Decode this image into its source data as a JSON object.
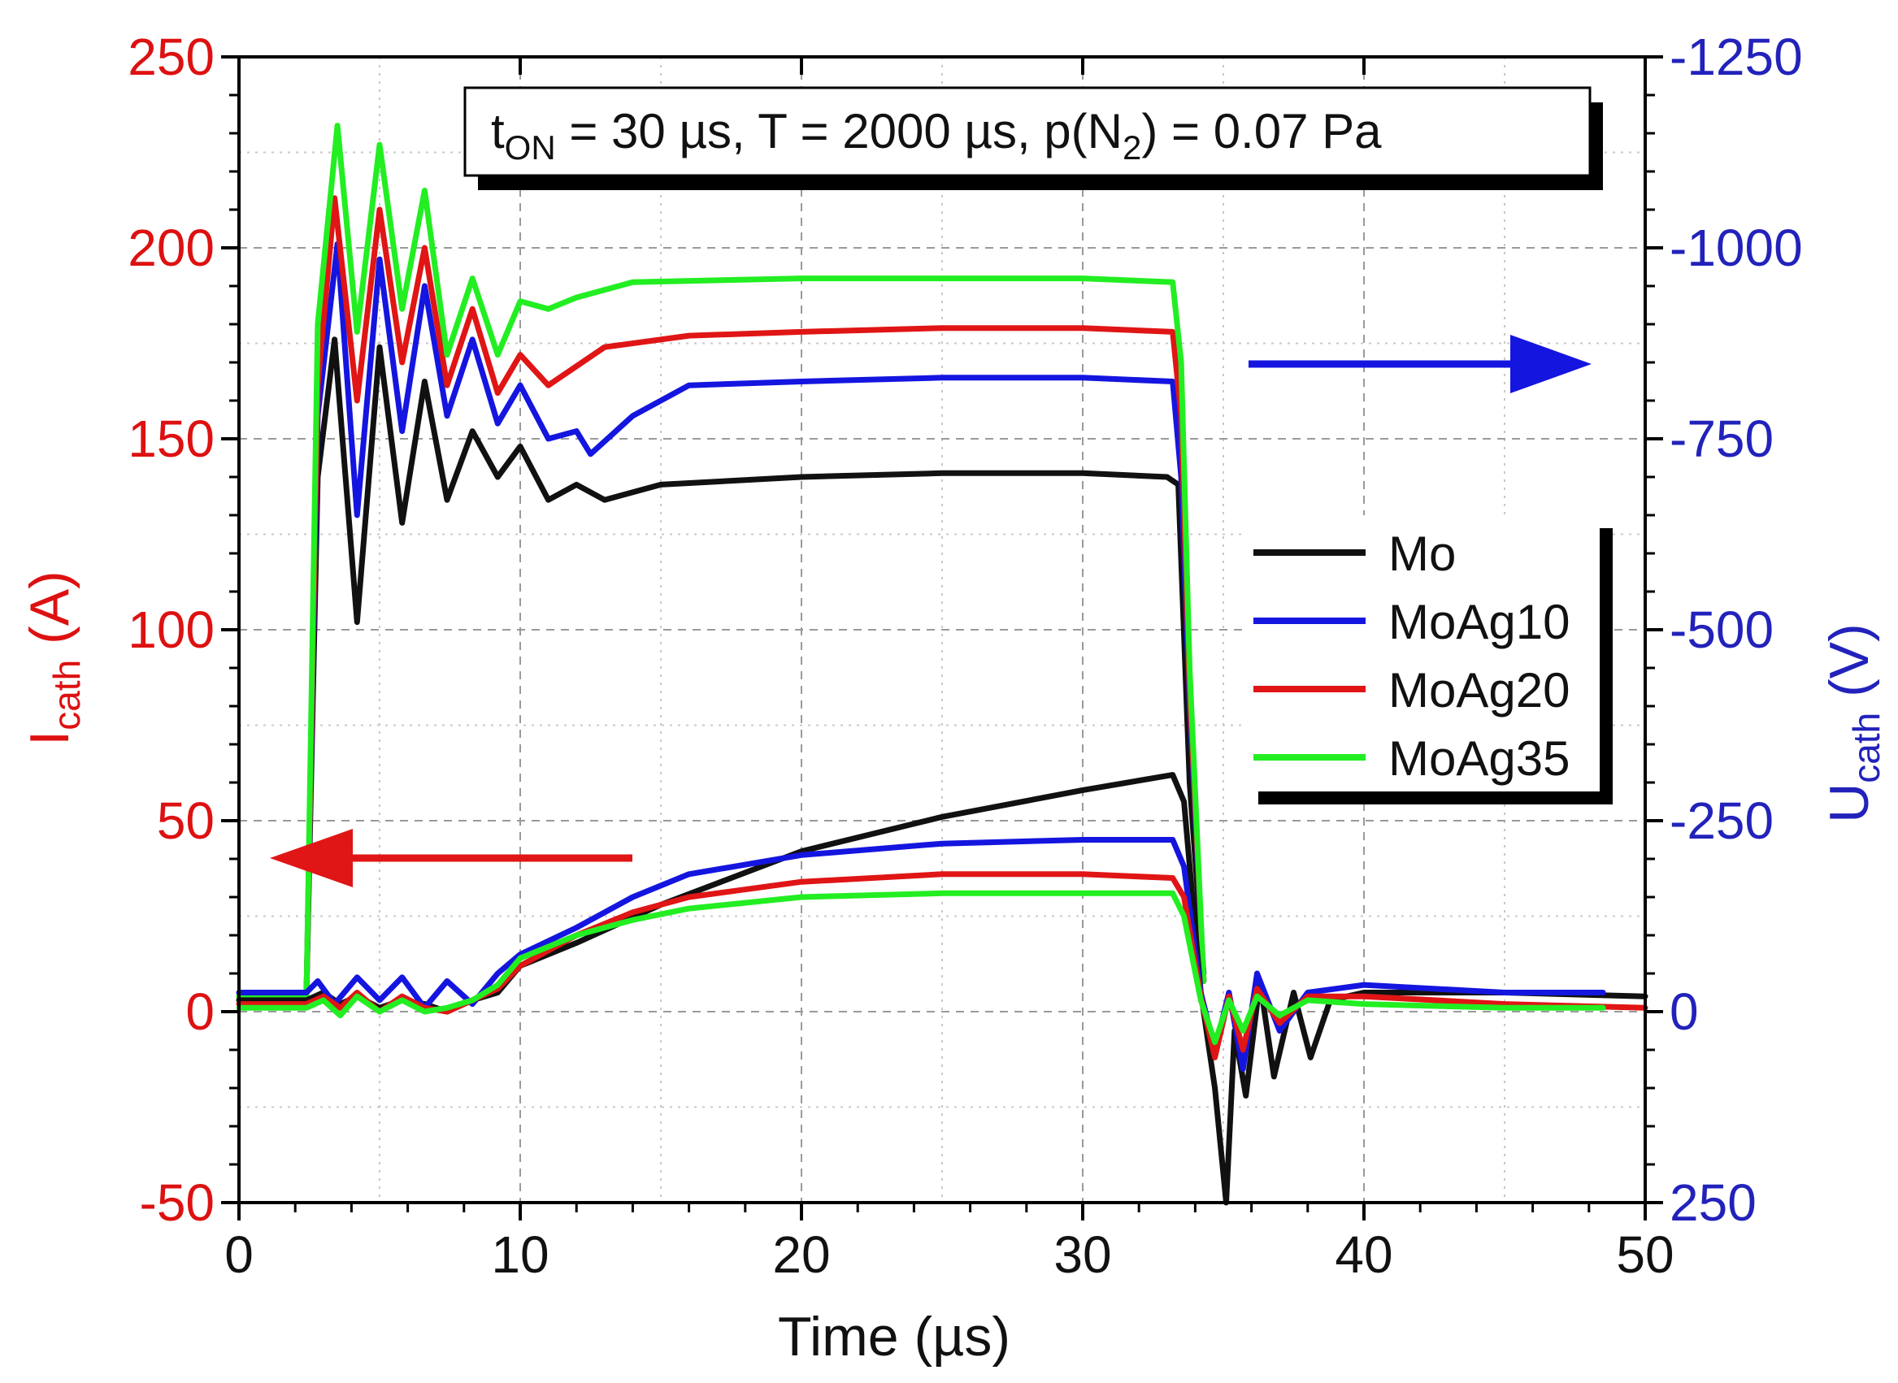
{
  "chart_data": {
    "type": "line",
    "annotation": "tON = 30 µs, T = 2000 µs, p(N2) = 0.07 Pa",
    "annotation_parts": {
      "t": "t",
      "t_sub": "ON",
      "mid": " = 30 µs, T = 2000 µs, p(N",
      "n_sub": "2",
      "end": ") = 0.07 Pa"
    },
    "xlabel": "Time (µs)",
    "ylabel_left": "Icath (A)",
    "ylabel_left_parts": {
      "main": "I",
      "sub": "cath",
      "unit": " (A)"
    },
    "ylabel_right": "Ucath (V)",
    "ylabel_right_parts": {
      "main": "U",
      "sub": "cath",
      "unit": " (V)"
    },
    "xlim": [
      0,
      50
    ],
    "ylim_left": [
      -50,
      250
    ],
    "ylim_right": [
      250,
      -1250
    ],
    "xticks": [
      "0",
      "10",
      "20",
      "30",
      "40",
      "50"
    ],
    "yticks_left": [
      "-50",
      "0",
      "50",
      "100",
      "150",
      "200",
      "250"
    ],
    "yticks_right": [
      "250",
      "0",
      "-250",
      "-500",
      "-750",
      "-1000",
      "-1250"
    ],
    "grid": true,
    "legend_position": "center-right",
    "colors": {
      "Mo": "#111111",
      "MoAg10": "#1515e0",
      "MoAg20": "#e01515",
      "MoAg35": "#22ee22",
      "left_axis": "#dd1111",
      "right_axis": "#2222bb"
    },
    "series": [
      {
        "name": "Mo",
        "quantity": "voltage",
        "axis": "right",
        "x": [
          0,
          2.4,
          2.8,
          3.4,
          4.2,
          5.0,
          5.8,
          6.6,
          7.4,
          8.3,
          9.2,
          10,
          11,
          12,
          13,
          15,
          20,
          25,
          30,
          33,
          33.4,
          33.8,
          34.3
        ],
        "y": [
          -20,
          -20,
          -700,
          -880,
          -510,
          -870,
          -640,
          -825,
          -670,
          -760,
          -700,
          -740,
          -670,
          -690,
          -670,
          -690,
          -700,
          -705,
          -705,
          -700,
          -690,
          -300,
          -50
        ]
      },
      {
        "name": "MoAg10",
        "quantity": "voltage",
        "axis": "right",
        "x": [
          0,
          2.4,
          2.8,
          3.5,
          4.2,
          5.0,
          5.8,
          6.6,
          7.4,
          8.3,
          9.2,
          10,
          11,
          12,
          12.5,
          14,
          16,
          20,
          25,
          30,
          33.2,
          33.5,
          33.8,
          34.3
        ],
        "y": [
          -20,
          -20,
          -780,
          -1005,
          -650,
          -985,
          -760,
          -950,
          -780,
          -880,
          -770,
          -820,
          -750,
          -760,
          -730,
          -780,
          -820,
          -825,
          -830,
          -830,
          -825,
          -700,
          -400,
          -40
        ]
      },
      {
        "name": "MoAg20",
        "quantity": "voltage",
        "axis": "right",
        "x": [
          0,
          2.4,
          2.8,
          3.4,
          4.2,
          5.0,
          5.8,
          6.6,
          7.4,
          8.3,
          9.2,
          10,
          11,
          13,
          16,
          20,
          25,
          30,
          33.2,
          33.5,
          33.8,
          34.3
        ],
        "y": [
          -20,
          -20,
          -820,
          -1065,
          -800,
          -1050,
          -850,
          -1000,
          -820,
          -920,
          -810,
          -860,
          -820,
          -870,
          -885,
          -890,
          -895,
          -895,
          -890,
          -780,
          -420,
          -40
        ]
      },
      {
        "name": "MoAg35",
        "quantity": "voltage",
        "axis": "right",
        "x": [
          0,
          2.4,
          2.8,
          3.5,
          4.2,
          5.0,
          5.8,
          6.6,
          7.4,
          8.3,
          9.2,
          10,
          11,
          12,
          14,
          20,
          25,
          30,
          33.2,
          33.5,
          33.8,
          34.3
        ],
        "y": [
          -20,
          -20,
          -900,
          -1160,
          -890,
          -1135,
          -920,
          -1075,
          -860,
          -960,
          -860,
          -930,
          -920,
          -935,
          -955,
          -960,
          -960,
          -960,
          -955,
          -850,
          -450,
          -40
        ]
      },
      {
        "name": "Mo",
        "quantity": "current",
        "axis": "left",
        "x": [
          0,
          2.4,
          3.0,
          3.6,
          4.2,
          5.0,
          5.8,
          6.6,
          7.4,
          8.3,
          9.2,
          10,
          12,
          15,
          20,
          25,
          30,
          33.2,
          33.6,
          34.2,
          34.7,
          35.1,
          35.4,
          35.8,
          36.3,
          36.8,
          37.5,
          38.1,
          38.8,
          40,
          45,
          50
        ],
        "y": [
          3,
          3,
          5,
          2,
          4,
          1,
          3,
          2,
          0,
          3,
          5,
          12,
          18,
          28,
          42,
          51,
          58,
          62,
          55,
          5,
          -20,
          -50,
          -5,
          -22,
          8,
          -17,
          5,
          -12,
          3,
          5,
          5,
          4
        ]
      },
      {
        "name": "MoAg10",
        "quantity": "current",
        "axis": "left",
        "x": [
          0,
          2.4,
          2.8,
          3.4,
          4.2,
          5.0,
          5.8,
          6.6,
          7.4,
          8.3,
          9.2,
          10,
          12,
          14,
          16,
          20,
          25,
          30,
          33.2,
          33.6,
          34.2,
          34.7,
          35.2,
          35.7,
          36.2,
          37,
          38,
          40,
          45,
          48.5
        ],
        "y": [
          5,
          5,
          8,
          2,
          9,
          3,
          9,
          1,
          8,
          2,
          10,
          15,
          22,
          30,
          36,
          41,
          44,
          45,
          45,
          38,
          5,
          -10,
          5,
          -15,
          10,
          -5,
          5,
          7,
          5,
          5
        ]
      },
      {
        "name": "MoAg20",
        "quantity": "current",
        "axis": "left",
        "x": [
          0,
          2.4,
          3.0,
          3.6,
          4.2,
          5.0,
          5.8,
          6.6,
          7.4,
          8.3,
          9.2,
          10,
          12,
          14,
          16,
          20,
          25,
          30,
          33.2,
          33.6,
          34.2,
          34.7,
          35.2,
          35.7,
          36.2,
          37,
          38,
          40,
          45,
          50
        ],
        "y": [
          2,
          2,
          4,
          1,
          5,
          0,
          4,
          1,
          0,
          3,
          6,
          12,
          20,
          26,
          30,
          34,
          36,
          36,
          35,
          30,
          4,
          -12,
          4,
          -10,
          6,
          -3,
          4,
          4,
          2,
          1
        ]
      },
      {
        "name": "MoAg35",
        "quantity": "current",
        "axis": "left",
        "x": [
          0,
          2.4,
          3.0,
          3.6,
          4.2,
          5.0,
          5.8,
          6.6,
          7.4,
          8.3,
          9.2,
          10,
          12,
          14,
          16,
          20,
          25,
          30,
          33.2,
          33.6,
          34.2,
          34.7,
          35.2,
          35.7,
          36.2,
          37,
          38,
          40,
          45,
          48.5
        ],
        "y": [
          1,
          1,
          3,
          -1,
          4,
          0,
          3,
          0,
          1,
          3,
          7,
          14,
          20,
          24,
          27,
          30,
          31,
          31,
          31,
          25,
          3,
          -8,
          3,
          -5,
          4,
          -1,
          3,
          2,
          1,
          1
        ]
      }
    ],
    "legend": [
      "Mo",
      "MoAg10",
      "MoAg20",
      "MoAg35"
    ]
  }
}
